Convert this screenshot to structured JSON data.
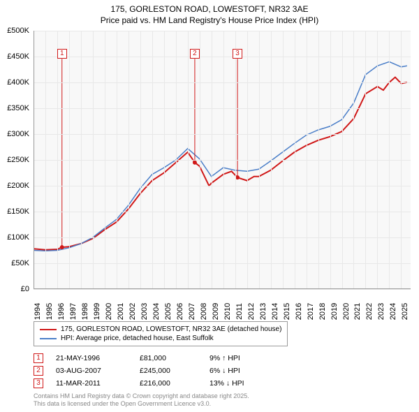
{
  "title_line1": "175, GORLESTON ROAD, LOWESTOFT, NR32 3AE",
  "title_line2": "Price paid vs. HM Land Registry's House Price Index (HPI)",
  "chart": {
    "type": "line",
    "background_color": "#f8f8f8",
    "grid_color": "#e8e8e8",
    "ylim": [
      0,
      500000
    ],
    "ytick_step": 50000,
    "y_labels": [
      "£0",
      "£50K",
      "£100K",
      "£150K",
      "£200K",
      "£250K",
      "£300K",
      "£350K",
      "£400K",
      "£450K",
      "£500K"
    ],
    "xlim": [
      1994,
      2025.8
    ],
    "x_labels": [
      "1994",
      "1995",
      "1996",
      "1997",
      "1998",
      "1999",
      "2000",
      "2001",
      "2002",
      "2003",
      "2004",
      "2005",
      "2006",
      "2007",
      "2008",
      "2009",
      "2010",
      "2011",
      "2012",
      "2013",
      "2014",
      "2015",
      "2016",
      "2017",
      "2018",
      "2019",
      "2020",
      "2021",
      "2022",
      "2023",
      "2024",
      "2025"
    ],
    "label_fontsize": 11,
    "series": [
      {
        "name": "red",
        "color": "#d01818",
        "width": 2,
        "data": [
          [
            1994,
            78000
          ],
          [
            1995,
            76000
          ],
          [
            1996,
            77000
          ],
          [
            1996.4,
            81000
          ],
          [
            1997,
            82000
          ],
          [
            1998,
            88000
          ],
          [
            1999,
            98000
          ],
          [
            2000,
            115000
          ],
          [
            2001,
            130000
          ],
          [
            2002,
            155000
          ],
          [
            2003,
            185000
          ],
          [
            2004,
            210000
          ],
          [
            2005,
            225000
          ],
          [
            2006,
            245000
          ],
          [
            2007,
            265000
          ],
          [
            2007.6,
            245000
          ],
          [
            2008,
            238000
          ],
          [
            2008.8,
            200000
          ],
          [
            2009,
            205000
          ],
          [
            2010,
            222000
          ],
          [
            2010.7,
            228000
          ],
          [
            2011.2,
            216000
          ],
          [
            2012,
            210000
          ],
          [
            2012.6,
            218000
          ],
          [
            2013,
            218000
          ],
          [
            2014,
            230000
          ],
          [
            2015,
            248000
          ],
          [
            2016,
            265000
          ],
          [
            2017,
            278000
          ],
          [
            2018,
            288000
          ],
          [
            2019,
            295000
          ],
          [
            2020,
            305000
          ],
          [
            2021,
            330000
          ],
          [
            2022,
            378000
          ],
          [
            2023,
            392000
          ],
          [
            2023.5,
            385000
          ],
          [
            2024,
            400000
          ],
          [
            2024.5,
            410000
          ],
          [
            2025,
            398000
          ],
          [
            2025.5,
            400000
          ]
        ]
      },
      {
        "name": "blue",
        "color": "#4a7ec8",
        "width": 1.5,
        "data": [
          [
            1994,
            75000
          ],
          [
            1995,
            74000
          ],
          [
            1996,
            75000
          ],
          [
            1997,
            80000
          ],
          [
            1998,
            88000
          ],
          [
            1999,
            100000
          ],
          [
            2000,
            118000
          ],
          [
            2001,
            135000
          ],
          [
            2002,
            162000
          ],
          [
            2003,
            195000
          ],
          [
            2004,
            222000
          ],
          [
            2005,
            235000
          ],
          [
            2006,
            250000
          ],
          [
            2007,
            272000
          ],
          [
            2008,
            252000
          ],
          [
            2009,
            218000
          ],
          [
            2010,
            235000
          ],
          [
            2011,
            230000
          ],
          [
            2012,
            228000
          ],
          [
            2013,
            232000
          ],
          [
            2014,
            248000
          ],
          [
            2015,
            265000
          ],
          [
            2016,
            282000
          ],
          [
            2017,
            298000
          ],
          [
            2018,
            308000
          ],
          [
            2019,
            315000
          ],
          [
            2020,
            328000
          ],
          [
            2021,
            360000
          ],
          [
            2022,
            415000
          ],
          [
            2023,
            432000
          ],
          [
            2024,
            440000
          ],
          [
            2025,
            430000
          ],
          [
            2025.5,
            432000
          ]
        ]
      }
    ],
    "markers": [
      {
        "n": "1",
        "x": 1996.4,
        "y": 81000,
        "box_y": 455000,
        "color": "#d01818"
      },
      {
        "n": "2",
        "x": 2007.6,
        "y": 245000,
        "box_y": 455000,
        "color": "#d01818"
      },
      {
        "n": "3",
        "x": 2011.2,
        "y": 216000,
        "box_y": 455000,
        "color": "#d01818"
      }
    ]
  },
  "legend": {
    "items": [
      {
        "color": "#d01818",
        "label": "175, GORLESTON ROAD, LOWESTOFT, NR32 3AE (detached house)"
      },
      {
        "color": "#4a7ec8",
        "label": "HPI: Average price, detached house, East Suffolk"
      }
    ]
  },
  "sales": [
    {
      "n": "1",
      "color": "#d01818",
      "date": "21-MAY-1996",
      "price": "£81,000",
      "diff": "9% ↑ HPI"
    },
    {
      "n": "2",
      "color": "#d01818",
      "date": "03-AUG-2007",
      "price": "£245,000",
      "diff": "6% ↓ HPI"
    },
    {
      "n": "3",
      "color": "#d01818",
      "date": "11-MAR-2011",
      "price": "£216,000",
      "diff": "13% ↓ HPI"
    }
  ],
  "footnote_line1": "Contains HM Land Registry data © Crown copyright and database right 2025.",
  "footnote_line2": "This data is licensed under the Open Government Licence v3.0."
}
